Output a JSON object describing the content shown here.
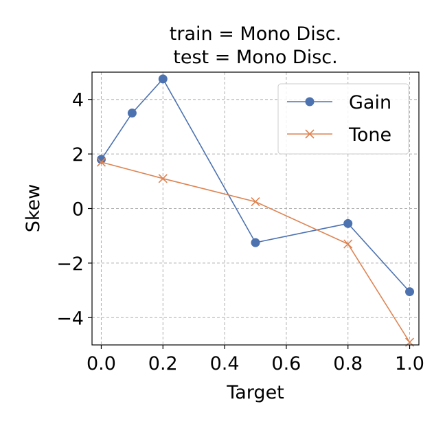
{
  "chart_data": {
    "type": "line",
    "title_lines": [
      "train = Mono Disc.",
      "test = Mono Disc."
    ],
    "xlabel": "Target",
    "ylabel": "Skew",
    "xlim": [
      -0.03,
      1.03
    ],
    "ylim": [
      -5.0,
      5.0
    ],
    "xticks": [
      0.0,
      0.2,
      0.4,
      0.6,
      0.8,
      1.0
    ],
    "xtick_labels": [
      "0.0",
      "0.2",
      "0.4",
      "0.6",
      "0.8",
      "1.0"
    ],
    "yticks": [
      -4,
      -2,
      0,
      2,
      4
    ],
    "ytick_labels": [
      "−4",
      "−2",
      "0",
      "2",
      "4"
    ],
    "grid": true,
    "legend_position": "top-right",
    "series": [
      {
        "name": "Gain",
        "marker": "circle",
        "color": "#4C72B0",
        "x": [
          0.0,
          0.1,
          0.2,
          0.5,
          0.8,
          1.0
        ],
        "y": [
          1.8,
          3.5,
          4.75,
          -1.25,
          -0.55,
          -3.05
        ]
      },
      {
        "name": "Tone",
        "marker": "x",
        "color": "#DD8452",
        "x": [
          0.0,
          0.2,
          0.5,
          0.8,
          1.0
        ],
        "y": [
          1.7,
          1.1,
          0.25,
          -1.3,
          -4.9
        ]
      }
    ]
  }
}
